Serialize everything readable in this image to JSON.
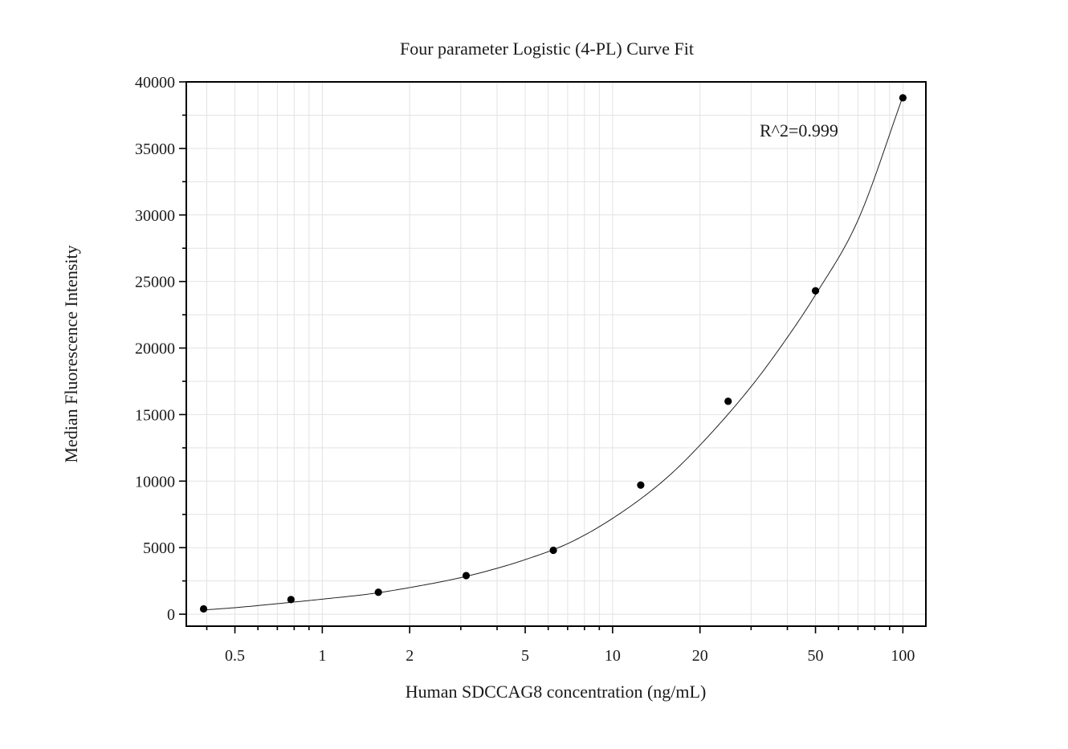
{
  "chart_data": {
    "type": "scatter",
    "title": "Four parameter Logistic (4-PL) Curve Fit",
    "xlabel": "Human SDCCAG8 concentration (ng/mL)",
    "ylabel": "Median Fluorescence Intensity",
    "x_scale": "log",
    "xlim": [
      0.34,
      120
    ],
    "ylim": [
      -900,
      40000
    ],
    "grid": true,
    "x_ticks": [
      0.5,
      1,
      2,
      5,
      10,
      20,
      50,
      100
    ],
    "x_tick_labels": [
      "0.5",
      "1",
      "2",
      "5",
      "10",
      "20",
      "50",
      "100"
    ],
    "y_ticks": [
      0,
      5000,
      10000,
      15000,
      20000,
      25000,
      30000,
      35000,
      40000
    ],
    "y_tick_labels": [
      "0",
      "5000",
      "10000",
      "15000",
      "20000",
      "25000",
      "30000",
      "35000",
      "40000"
    ],
    "points": {
      "x": [
        0.39,
        0.78,
        1.56,
        3.13,
        6.25,
        12.5,
        25,
        50,
        100
      ],
      "y": [
        400,
        1100,
        1650,
        2900,
        4800,
        9700,
        16000,
        24300,
        38800
      ]
    },
    "fit_curve": {
      "x": [
        0.39,
        0.5,
        0.7,
        1,
        1.5,
        2,
        3,
        4,
        5,
        7,
        10,
        15,
        20,
        30,
        40,
        50,
        70,
        100
      ],
      "y": [
        320,
        490,
        790,
        1130,
        1560,
        2000,
        2750,
        3450,
        4100,
        5300,
        7200,
        10050,
        12700,
        17100,
        20800,
        24000,
        29600,
        38900
      ]
    },
    "annotation": "R^2=0.999"
  }
}
